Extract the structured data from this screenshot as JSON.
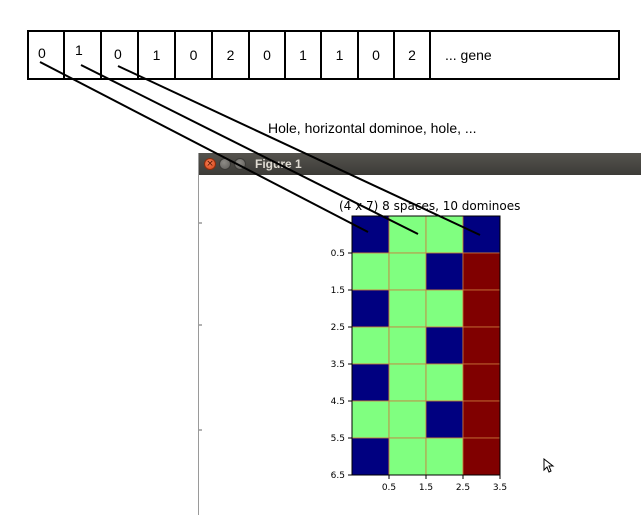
{
  "gene": {
    "cells": [
      "0",
      "1",
      "0",
      "1",
      "0",
      "2",
      "0",
      "1",
      "1",
      "0",
      "2"
    ],
    "tail_label": "... gene"
  },
  "annotation": "Hole, horizontal dominoe, hole, ...",
  "window": {
    "title": "Figure 1",
    "close_symbol": "×"
  },
  "plot": {
    "title": "(4 x 7) 8 spaces, 10 dominoes",
    "colors": {
      "hole": "#000080",
      "domino": "#80ff80",
      "unused": "#800000",
      "grid": "#cc7a3a"
    },
    "grid_rows": [
      [
        "hole",
        "domino",
        "domino",
        "hole"
      ],
      [
        "domino",
        "domino",
        "hole",
        "unused"
      ],
      [
        "hole",
        "domino",
        "domino",
        "unused"
      ],
      [
        "domino",
        "domino",
        "hole",
        "unused"
      ],
      [
        "hole",
        "domino",
        "domino",
        "unused"
      ],
      [
        "domino",
        "domino",
        "hole",
        "unused"
      ],
      [
        "hole",
        "domino",
        "domino",
        "unused"
      ]
    ],
    "y_ticks": [
      "0.5",
      "1.5",
      "2.5",
      "3.5",
      "4.5",
      "5.5",
      "6.5"
    ],
    "x_ticks": [
      "0.5",
      "1.5",
      "2.5",
      "3.5"
    ]
  }
}
